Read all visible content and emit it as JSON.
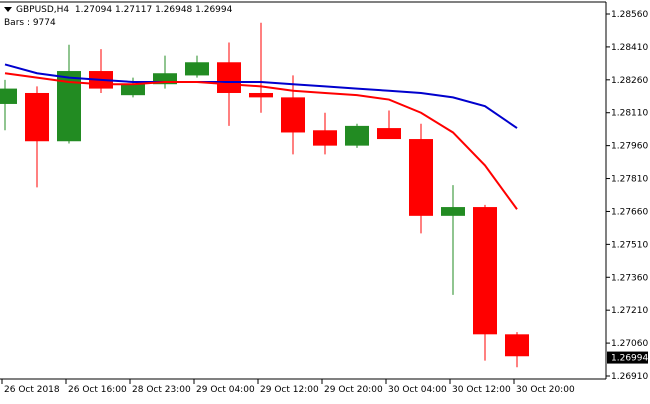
{
  "header": {
    "symbol": "GBPUSD,H4",
    "ohlc": "1.27094 1.27117 1.26948 1.26994",
    "bars_label": "Bars : 9774"
  },
  "colors": {
    "bull": "#228B22",
    "bear": "#FF0000",
    "ma_fast": "#FF0000",
    "ma_slow": "#0000CD",
    "grid": "#000000",
    "current_price_bg": "#000000"
  },
  "chart_data": {
    "type": "candlestick",
    "title": "GBPUSD,H4",
    "y_ticks": [
      "1.28560",
      "1.28410",
      "1.28260",
      "1.28110",
      "1.27960",
      "1.27810",
      "1.27660",
      "1.27510",
      "1.27360",
      "1.27210",
      "1.27060",
      "1.26910"
    ],
    "ylim": [
      1.2688,
      1.2862
    ],
    "current_price": "1.26994",
    "x_labels": [
      "26 Oct 2018",
      "26 Oct 16:00",
      "28 Oct 23:00",
      "29 Oct 04:00",
      "29 Oct 12:00",
      "29 Oct 20:00",
      "30 Oct 04:00",
      "30 Oct 12:00",
      "30 Oct 20:00"
    ],
    "candles": [
      {
        "o": 1.2815,
        "h": 1.2826,
        "l": 1.2803,
        "c": 1.2822
      },
      {
        "o": 1.282,
        "h": 1.2823,
        "l": 1.2777,
        "c": 1.2798
      },
      {
        "o": 1.2798,
        "h": 1.2842,
        "l": 1.2797,
        "c": 1.283
      },
      {
        "o": 1.283,
        "h": 1.284,
        "l": 1.282,
        "c": 1.2822
      },
      {
        "o": 1.2819,
        "h": 1.2827,
        "l": 1.2818,
        "c": 1.2824
      },
      {
        "o": 1.2824,
        "h": 1.2837,
        "l": 1.2822,
        "c": 1.2829
      },
      {
        "o": 1.2828,
        "h": 1.2837,
        "l": 1.2827,
        "c": 1.2834
      },
      {
        "o": 1.2834,
        "h": 1.2843,
        "l": 1.2805,
        "c": 1.282
      },
      {
        "o": 1.282,
        "h": 1.2852,
        "l": 1.2811,
        "c": 1.2818
      },
      {
        "o": 1.2818,
        "h": 1.2828,
        "l": 1.2792,
        "c": 1.2802
      },
      {
        "o": 1.2803,
        "h": 1.2811,
        "l": 1.2792,
        "c": 1.2796
      },
      {
        "o": 1.2796,
        "h": 1.2806,
        "l": 1.2795,
        "c": 1.2805
      },
      {
        "o": 1.2804,
        "h": 1.2812,
        "l": 1.2799,
        "c": 1.2799
      },
      {
        "o": 1.2799,
        "h": 1.2806,
        "l": 1.2756,
        "c": 1.2764
      },
      {
        "o": 1.2764,
        "h": 1.2778,
        "l": 1.2728,
        "c": 1.2768
      },
      {
        "o": 1.2768,
        "h": 1.2769,
        "l": 1.2698,
        "c": 1.271
      },
      {
        "o": 1.271,
        "h": 1.2711,
        "l": 1.2695,
        "c": 1.27
      }
    ],
    "ma_fast": {
      "color": "#FF0000",
      "values": [
        1.2829,
        1.2827,
        1.2825,
        1.2824,
        1.2824,
        1.2825,
        1.2825,
        1.2824,
        1.2823,
        1.2821,
        1.282,
        1.2819,
        1.2817,
        1.2811,
        1.2802,
        1.2787,
        1.2767
      ]
    },
    "ma_slow": {
      "color": "#0000CD",
      "values": [
        1.2833,
        1.2829,
        1.2827,
        1.2826,
        1.2825,
        1.2825,
        1.2825,
        1.2825,
        1.2825,
        1.2824,
        1.2823,
        1.2822,
        1.2821,
        1.282,
        1.2818,
        1.2814,
        1.2804
      ]
    }
  }
}
